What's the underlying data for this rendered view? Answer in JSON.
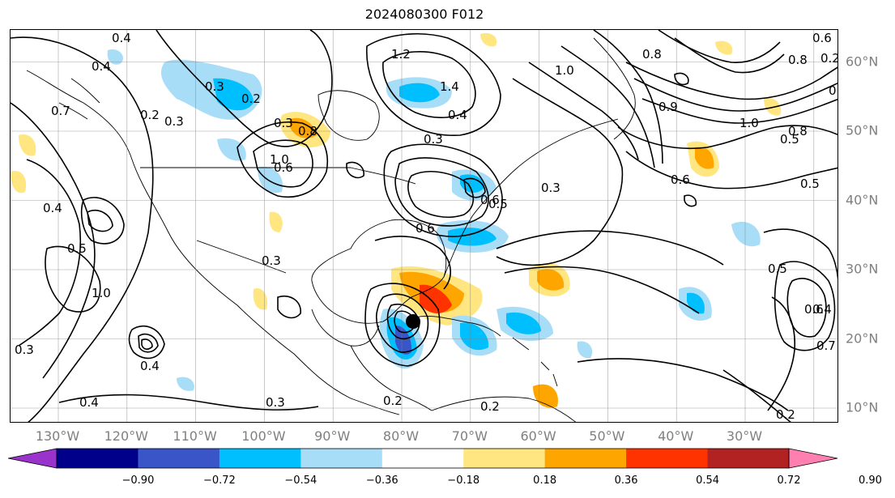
{
  "title": "2024080300 F012",
  "longitude_labels": [
    "130°W",
    "120°W",
    "110°W",
    "100°W",
    "90°W",
    "80°W",
    "70°W",
    "60°W",
    "50°W",
    "40°W",
    "30°W"
  ],
  "latitude_labels": [
    "60°N",
    "50°N",
    "40°N",
    "30°N",
    "20°N",
    "10°N"
  ],
  "colorbar": {
    "ticks": [
      "−0.90",
      "−0.72",
      "−0.54",
      "−0.36",
      "−0.18",
      "0.18",
      "0.36",
      "0.54",
      "0.72",
      "0.90"
    ],
    "colors": [
      "#9a33cc",
      "#00008b",
      "#3a55c8",
      "#00bfff",
      "#a8ddf7",
      "#ffffff",
      "#ffe680",
      "#ffa500",
      "#ff3300",
      "#b22222",
      "#ff80b0"
    ]
  },
  "contour_labels": [
    "0.4",
    "0.7",
    "0.4",
    "0.3",
    "0.2",
    "0.3",
    "1.2",
    "1.4",
    "1.0",
    "0.8",
    "0.6",
    "0.2",
    "0.8",
    "0.7",
    "0.4",
    "0.3",
    "0.4",
    "0.5",
    "1.0",
    "0.3",
    "0.6",
    "0.8",
    "1.0",
    "0.9",
    "0.6",
    "1.0",
    "0.5",
    "0.5",
    "0.3",
    "0.6",
    "0.5",
    "0.3",
    "0.6",
    "0.5",
    "0.6",
    "0.4",
    "0.7",
    "0.8",
    "0.4",
    "0.4",
    "0.3",
    "0.2",
    "0.2",
    "0.2",
    "0.2",
    "0.3"
  ],
  "icons": {
    "storm_center": "storm-center-dot"
  }
}
